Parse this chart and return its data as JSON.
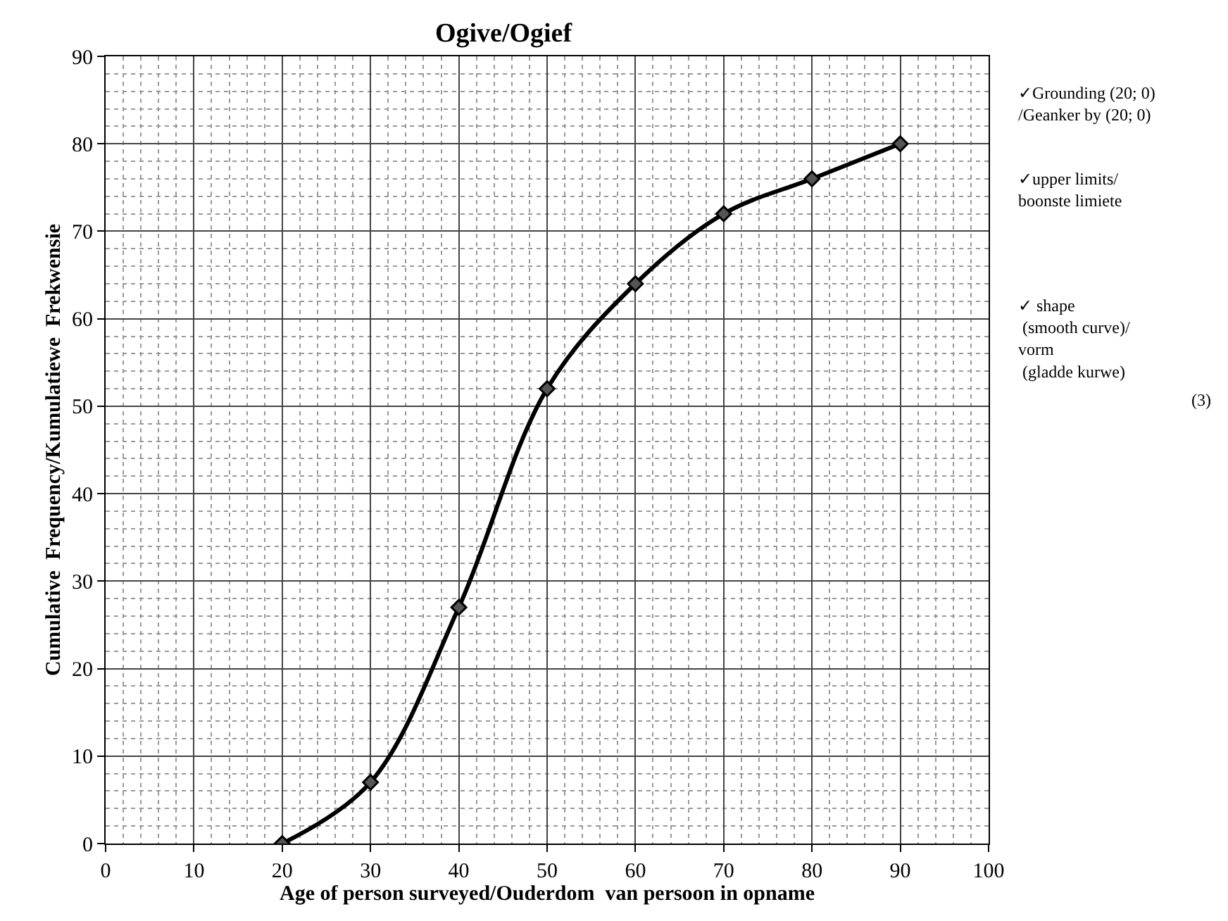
{
  "chart_data": {
    "type": "line",
    "title": "Ogive/Ogief",
    "xlabel": "Age of person surveyed/Ouderdom  van persoon in opname",
    "ylabel": "Cumulative  Frequency/Kumulatiewe  Frekwensie",
    "x": [
      20,
      30,
      40,
      50,
      60,
      70,
      80,
      90
    ],
    "series": [
      {
        "color": "#000000",
        "values": [
          0,
          7,
          27,
          52,
          64,
          72,
          76,
          80
        ]
      }
    ],
    "xlim": [
      0,
      100
    ],
    "xticks": [
      0,
      10,
      20,
      30,
      40,
      50,
      60,
      70,
      80,
      90,
      100
    ],
    "ylim": [
      0,
      90
    ],
    "yticks": [
      0,
      10,
      20,
      30,
      40,
      50,
      60,
      70,
      80,
      90
    ],
    "grid": true,
    "marker": "diamond",
    "line_style": "solid",
    "annotations": [
      "✓Grounding (20; 0)\n/Geanker by (20; 0)",
      "✓upper limits/\nboonste limiete",
      "✓ shape\n (smooth curve)/\nvorm\n (gladde kurwe)",
      "(3)"
    ]
  }
}
